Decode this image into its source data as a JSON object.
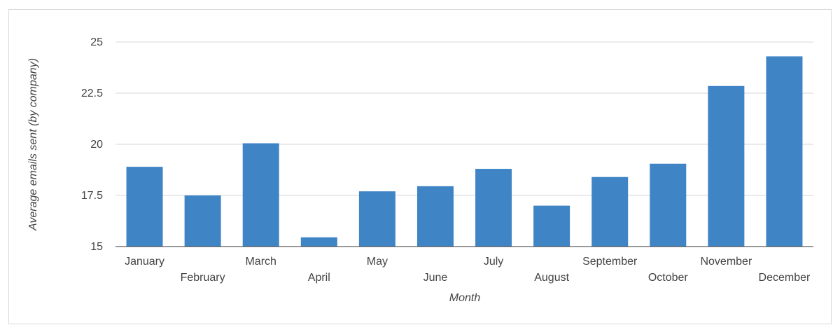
{
  "chart_data": {
    "type": "bar",
    "categories": [
      "January",
      "February",
      "March",
      "April",
      "May",
      "June",
      "July",
      "August",
      "September",
      "October",
      "November",
      "December"
    ],
    "series": [
      {
        "values": [
          18.9,
          17.5,
          20.05,
          15.45,
          17.7,
          17.95,
          18.8,
          17.0,
          18.4,
          19.05,
          22.85,
          24.3
        ]
      }
    ],
    "xlabel": "Month",
    "ylabel": "Average emails sent (by company)",
    "ylim": [
      15,
      25
    ],
    "yticks": [
      "15",
      "17.5",
      "20",
      "22.5",
      "25"
    ],
    "grid": true,
    "legend": "none",
    "colors": {
      "bar": "#3f85c6",
      "grid": "#d7d7d7",
      "axis": "#333333",
      "text": "#444444"
    }
  }
}
